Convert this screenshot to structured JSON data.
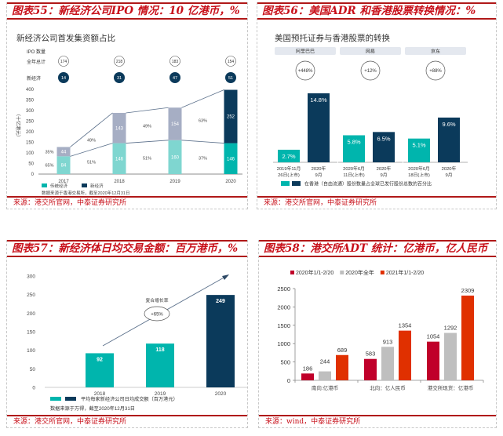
{
  "panels": [
    {
      "title": "图表55：新经济公司IPO 情况：10 亿港币，%",
      "source": "来源：港交所官网，中泰证券研究所"
    },
    {
      "title": "图表56：美国ADR 和香港股票转换情况：%",
      "source": "来源：港交所官网，中泰证券研究所"
    },
    {
      "title": "图表57：新经济体日均交易金额：百万港币，%",
      "source": "来源：港交所官网，中泰证券研究所"
    },
    {
      "title": "图表58：港交所ADT 统计：亿港币，亿人民币",
      "source": "来源：wind，中泰证券研究所"
    }
  ],
  "chart_data": [
    {
      "type": "bar",
      "stacked": true,
      "title": "新经济公司首发集资额占比",
      "ylabel": "（十亿港元）",
      "ylim": [
        0,
        400
      ],
      "yticks": [
        0,
        50,
        100,
        150,
        200,
        250,
        300,
        350,
        400
      ],
      "categories": [
        "2017",
        "2018",
        "2019",
        "2020"
      ],
      "series": [
        {
          "name": "传统经济",
          "values": [
            84,
            146,
            160,
            146
          ],
          "shares": [
            "65%",
            "51%",
            "51%",
            "37%"
          ],
          "color": "#7fd6d0",
          "color_last": "#00b5ad"
        },
        {
          "name": "新经济",
          "values": [
            44,
            143,
            154,
            252
          ],
          "shares": [
            "35%",
            "49%",
            "49%",
            "63%"
          ],
          "color": "#a6aec4",
          "color_last": "#0b3a5b"
        }
      ],
      "ipo_header": "IPO 数量",
      "ipo_total_label": "全年总计",
      "ipo_total": [
        "174",
        "218",
        "183",
        "154"
      ],
      "ipo_new_label": "新经济",
      "ipo_new": [
        "14",
        "31",
        "47",
        "51"
      ],
      "note": "数据来源于香港交易所，截至2020年12月31日",
      "legend": "bottom-left"
    },
    {
      "type": "bar",
      "title": "美国预托证券与香港股票的转换",
      "groups": [
        {
          "name": "阿里巴巴",
          "growth": "+448%",
          "bars": [
            {
              "label": [
                "2019年11月",
                "26日(上市)"
              ],
              "value": 2.7,
              "text": "2.7%"
            },
            {
              "label": [
                "2020年",
                "9月"
              ],
              "value": 14.8,
              "text": "14.8%"
            }
          ]
        },
        {
          "name": "网易",
          "growth": "+12%",
          "bars": [
            {
              "label": [
                "2020年6月",
                "11日(上市)"
              ],
              "value": 5.8,
              "text": "5.8%"
            },
            {
              "label": [
                "2020年",
                "9月"
              ],
              "value": 6.5,
              "text": "6.5%"
            }
          ]
        },
        {
          "name": "京东",
          "growth": "+88%",
          "bars": [
            {
              "label": [
                "2020年6月",
                "18日(上市)"
              ],
              "value": 5.1,
              "text": "5.1%"
            },
            {
              "label": [
                "2020年",
                "9月"
              ],
              "value": 9.6,
              "text": "9.6%"
            }
          ]
        }
      ],
      "colors": [
        "#00b5ad",
        "#0b3a5b"
      ],
      "legend_text": "在香港（自由流通）股份数量占全球已发行股份总数的百分比",
      "legend": "bottom"
    },
    {
      "type": "bar",
      "title": "",
      "ylim": [
        0,
        300
      ],
      "yticks": [
        0,
        50,
        100,
        150,
        200,
        250,
        300
      ],
      "categories": [
        "2018",
        "2019",
        "2020"
      ],
      "values": [
        92,
        118,
        249
      ],
      "colors": [
        "#00b5ad",
        "#00b5ad",
        "#0b3a5b"
      ],
      "cagr_label": "复合增长率",
      "cagr_value": "+65%",
      "legend_text": "平均每家新经济公司日均成交额（百万港元）",
      "note": "数据来源于万得，截至2020年12月31日",
      "legend": "bottom"
    },
    {
      "type": "bar",
      "title": "",
      "ylim": [
        0,
        2500
      ],
      "yticks": [
        0,
        500,
        1000,
        1500,
        2000,
        2500
      ],
      "categories": [
        "南向:亿港币",
        "北向：亿人民币",
        "港交所现货：亿港币"
      ],
      "series": [
        {
          "name": "2020年1/1-2/20",
          "values": [
            186,
            583,
            1054
          ],
          "color": "#c0002a"
        },
        {
          "name": "2020年全年",
          "values": [
            244,
            913,
            1292
          ],
          "color": "#bfbfbf"
        },
        {
          "name": "2021年1/1-2/20",
          "values": [
            689,
            1354,
            2309
          ],
          "color": "#e03000"
        }
      ],
      "legend": "top"
    }
  ]
}
